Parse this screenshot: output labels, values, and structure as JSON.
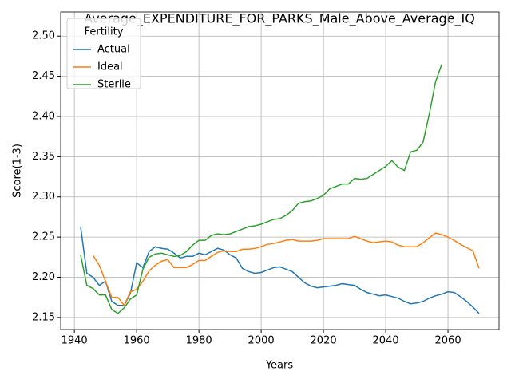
{
  "chart_data": {
    "type": "line",
    "title": "Average_EXPENDITURE_FOR_PARKS_Male_Above_Average_IQ",
    "xlabel": "Years",
    "ylabel": "Score(1-3)",
    "legend_title": "Fertility",
    "legend": "upper left",
    "grid": true,
    "x": [
      1942,
      1944,
      1946,
      1948,
      1950,
      1952,
      1954,
      1956,
      1958,
      1960,
      1962,
      1964,
      1966,
      1968,
      1970,
      1972,
      1974,
      1976,
      1978,
      1980,
      1982,
      1984,
      1986,
      1988,
      1990,
      1992,
      1994,
      1996,
      1998,
      2000,
      2002,
      2004,
      2006,
      2008,
      2010,
      2012,
      2014,
      2016,
      2018,
      2020,
      2022,
      2024,
      2026,
      2028,
      2030,
      2032,
      2034,
      2036,
      2038,
      2040,
      2042,
      2044,
      2046,
      2048,
      2050,
      2052,
      2054,
      2056,
      2058,
      2060,
      2062,
      2064,
      2066,
      2068,
      2070
    ],
    "series": [
      {
        "name": "Actual",
        "color": "#1f77b4",
        "values": [
          2.263,
          2.205,
          2.2,
          2.19,
          2.195,
          2.17,
          2.165,
          2.165,
          2.18,
          2.218,
          2.212,
          2.232,
          2.238,
          2.236,
          2.235,
          2.23,
          2.224,
          2.226,
          2.226,
          2.23,
          2.228,
          2.232,
          2.236,
          2.234,
          2.228,
          2.224,
          2.211,
          2.207,
          2.205,
          2.206,
          2.209,
          2.212,
          2.213,
          2.21,
          2.207,
          2.2,
          2.193,
          2.189,
          2.187,
          2.188,
          2.189,
          2.19,
          2.192,
          2.191,
          2.19,
          2.185,
          2.181,
          2.179,
          2.177,
          2.178,
          2.176,
          2.174,
          2.17,
          2.167,
          2.168,
          2.17,
          2.174,
          2.177,
          2.179,
          2.182,
          2.181,
          2.176,
          2.17,
          2.163,
          2.155
        ]
      },
      {
        "name": "Ideal",
        "color": "#ff7f0e",
        "values": [
          null,
          null,
          2.227,
          2.215,
          2.195,
          2.175,
          2.175,
          2.165,
          2.182,
          2.185,
          2.195,
          2.208,
          2.215,
          2.22,
          2.222,
          2.212,
          2.212,
          2.212,
          2.216,
          2.221,
          2.221,
          2.226,
          2.231,
          2.233,
          2.232,
          2.232,
          2.235,
          2.235,
          2.236,
          2.238,
          2.241,
          2.242,
          2.244,
          2.246,
          2.247,
          2.245,
          2.245,
          2.245,
          2.246,
          2.248,
          2.248,
          2.248,
          2.248,
          2.248,
          2.251,
          2.248,
          2.245,
          2.243,
          2.244,
          2.245,
          2.244,
          2.24,
          2.238,
          2.238,
          2.238,
          2.243,
          2.249,
          2.255,
          2.253,
          2.25,
          2.246,
          2.241,
          2.237,
          2.233,
          2.211
        ]
      },
      {
        "name": "Sterile",
        "color": "#2ca02c",
        "values": [
          2.228,
          2.19,
          2.186,
          2.178,
          2.178,
          2.16,
          2.155,
          2.162,
          2.173,
          2.178,
          2.21,
          2.225,
          2.229,
          2.23,
          2.228,
          2.226,
          2.227,
          2.232,
          2.24,
          2.246,
          2.246,
          2.252,
          2.254,
          2.253,
          2.254,
          2.257,
          2.26,
          2.263,
          2.264,
          2.266,
          2.269,
          2.272,
          2.273,
          2.277,
          2.283,
          2.292,
          2.294,
          2.295,
          2.298,
          2.302,
          2.31,
          2.313,
          2.316,
          2.316,
          2.323,
          2.322,
          2.323,
          2.328,
          2.333,
          2.338,
          2.345,
          2.337,
          2.333,
          2.356,
          2.358,
          2.368,
          2.403,
          2.443,
          2.465,
          null,
          null,
          null,
          null,
          null,
          null
        ]
      }
    ],
    "xlim": [
      1935.6,
      2076.4
    ],
    "xticks": [
      1940,
      1960,
      1980,
      2000,
      2020,
      2040,
      2060
    ],
    "ylim": [
      2.135,
      2.53
    ],
    "yticks": [
      2.15,
      {
        "value": 2.2,
        "label": "2.20"
      },
      2.25,
      {
        "value": 2.3,
        "label": "2.30"
      },
      2.35,
      {
        "value": 2.4,
        "label": "2.40"
      },
      2.45,
      {
        "value": 2.5,
        "label": "2.50"
      }
    ]
  }
}
